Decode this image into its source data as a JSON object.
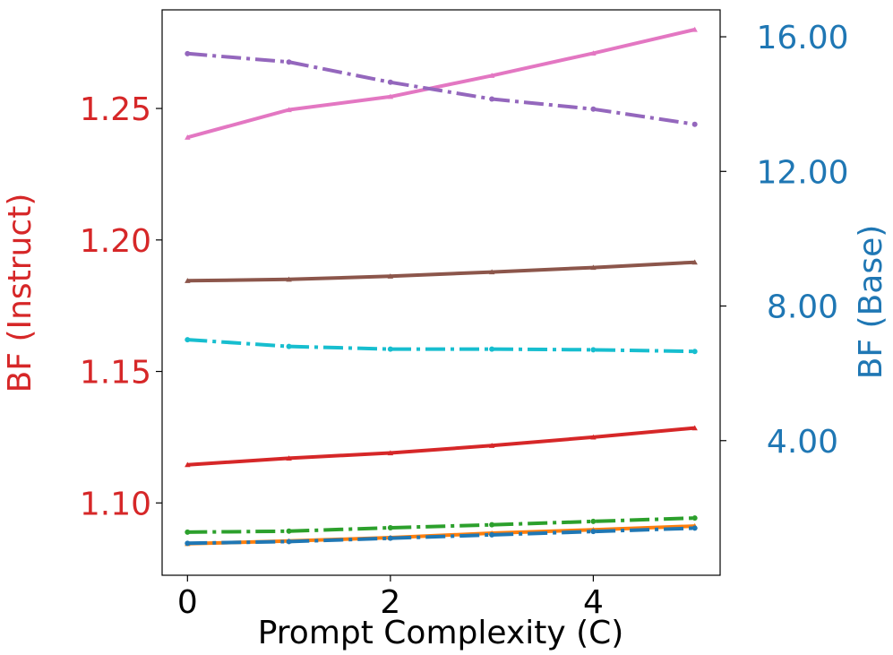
{
  "chart_data": {
    "type": "line",
    "title": "",
    "xlabel": "Prompt Complexity (C)",
    "ylabel_left": "BF (Instruct)",
    "ylabel_right": "BF (Base)",
    "xlim": [
      -0.25,
      5.25
    ],
    "ylim_left": [
      1.0725,
      1.2875
    ],
    "ylim_right": [
      0.0,
      16.8
    ],
    "x_ticks": [
      0,
      2,
      4
    ],
    "x_tick_labels": [
      "0",
      "2",
      "4"
    ],
    "y_left_ticks": [
      1.1,
      1.15,
      1.2,
      1.25
    ],
    "y_left_tick_labels": [
      "1.10",
      "1.15",
      "1.20",
      "1.25"
    ],
    "y_right_ticks": [
      4,
      8,
      12,
      16
    ],
    "y_right_tick_labels": [
      "4.00",
      "8.00",
      "12.00",
      "16.00"
    ],
    "grid": false,
    "colors": {
      "left_axis": "#d62728",
      "right_axis": "#1f77b4",
      "axes": "#000000"
    },
    "series": [
      {
        "axis": "left",
        "color": "#e377c2",
        "style": "solid",
        "marker": "triangle",
        "x": [
          0,
          1,
          2,
          3,
          4,
          5
        ],
        "values": [
          1.239,
          1.2495,
          1.2545,
          1.2625,
          1.271,
          1.28
        ]
      },
      {
        "axis": "left",
        "color": "#8c564b",
        "style": "solid",
        "marker": "triangle",
        "x": [
          0,
          1,
          2,
          3,
          4,
          5
        ],
        "values": [
          1.1845,
          1.185,
          1.1862,
          1.1878,
          1.1895,
          1.1915
        ]
      },
      {
        "axis": "left",
        "color": "#d62728",
        "style": "solid",
        "marker": "triangle",
        "x": [
          0,
          1,
          2,
          3,
          4,
          5
        ],
        "values": [
          1.1145,
          1.117,
          1.119,
          1.1218,
          1.125,
          1.1285
        ]
      },
      {
        "axis": "left",
        "color": "#ff7f0e",
        "style": "solid",
        "marker": "triangle",
        "x": [
          0,
          1,
          2,
          3,
          4,
          5
        ],
        "values": [
          1.0845,
          1.0855,
          1.0868,
          1.0885,
          1.0898,
          1.0912
        ]
      },
      {
        "axis": "right",
        "color": "#9467bd",
        "style": "dashdot",
        "marker": "circle",
        "x": [
          0,
          1,
          2,
          3,
          4,
          5
        ],
        "values": [
          15.5,
          15.25,
          14.65,
          14.15,
          13.85,
          13.4
        ]
      },
      {
        "axis": "right",
        "color": "#17becf",
        "style": "dashdot",
        "marker": "circle",
        "x": [
          0,
          1,
          2,
          3,
          4,
          5
        ],
        "values": [
          7.0,
          6.8,
          6.72,
          6.72,
          6.7,
          6.65
        ]
      },
      {
        "axis": "right",
        "color": "#2ca02c",
        "style": "dashdot",
        "marker": "circle",
        "x": [
          0,
          1,
          2,
          3,
          4,
          5
        ],
        "values": [
          1.28,
          1.31,
          1.41,
          1.5,
          1.6,
          1.7
        ]
      },
      {
        "axis": "right",
        "color": "#1f77b4",
        "style": "dashdot",
        "marker": "circle",
        "x": [
          0,
          1,
          2,
          3,
          4,
          5
        ],
        "values": [
          0.95,
          1.0,
          1.1,
          1.2,
          1.3,
          1.4
        ]
      }
    ]
  }
}
